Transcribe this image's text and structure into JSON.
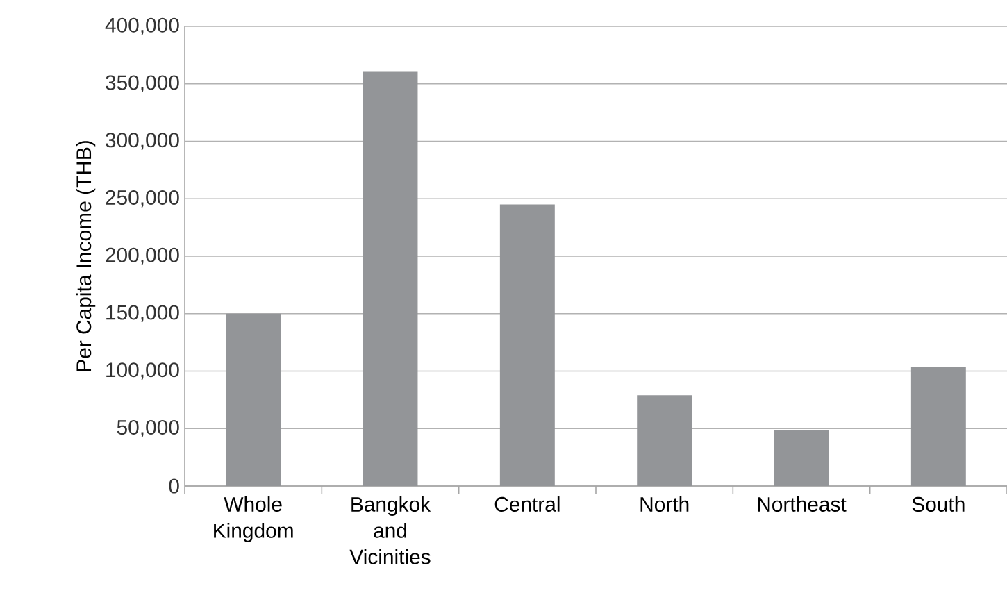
{
  "chart_data": {
    "type": "bar",
    "ylabel": "Per Capita Income (THB)",
    "categories": [
      "Whole Kingdom",
      "Bangkok and Vicinities",
      "Central",
      "North",
      "Northeast",
      "South"
    ],
    "values": [
      150000,
      361000,
      245000,
      79000,
      49000,
      104000
    ],
    "color": "#939598",
    "ylim": [
      0,
      400000
    ],
    "yticks": [
      0,
      {
        "value": 50000,
        "label": "50,000"
      },
      {
        "value": 100000,
        "label": "100,000"
      },
      {
        "value": 150000,
        "label": "150,000"
      },
      {
        "value": 200000,
        "label": "200,000"
      },
      {
        "value": 250000,
        "label": "250,000"
      },
      {
        "value": 300000,
        "label": "300,000"
      },
      {
        "value": 350000,
        "label": "350,000"
      },
      {
        "value": 400000,
        "label": "400,000"
      }
    ],
    "grid": "y"
  }
}
